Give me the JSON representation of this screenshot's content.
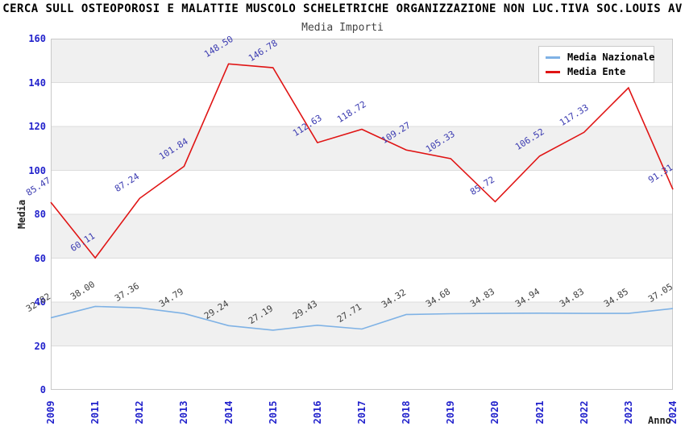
{
  "title": "CERCA SULL OSTEOPOROSI E MALATTIE MUSCOLO SCHELETRICHE ORGANIZZAZIONE NON LUC.TIVA SOC.LOUIS AV",
  "subtitle": "Media Importi",
  "y_axis": {
    "label": "Media",
    "ticks": [
      0,
      20,
      40,
      60,
      80,
      100,
      120,
      140,
      160
    ]
  },
  "x_axis": {
    "label": "Anno"
  },
  "legend": {
    "items": [
      {
        "label": "Media Nazionale",
        "color": "#7fb2e5"
      },
      {
        "label": "Media Ente",
        "color": "#e01414"
      }
    ]
  },
  "colors": {
    "tick_label": "#2222cc",
    "band": "#f0f0f0",
    "gridline": "#dcdcdc",
    "plot_border": "#c9c9c9",
    "nazionale_label": "#3f3f3f",
    "ente_label": "#3939b0"
  },
  "chart_data": {
    "type": "line",
    "title": "Media Importi",
    "xlabel": "Anno",
    "ylabel": "Media",
    "ylim": [
      0,
      160
    ],
    "grid": "horizontal-bands",
    "legend_position": "top-right",
    "x": [
      "2009",
      "2011",
      "2012",
      "2013",
      "2014",
      "2015",
      "2016",
      "2017",
      "2018",
      "2019",
      "2020",
      "2021",
      "2022",
      "2023",
      "2024"
    ],
    "series": [
      {
        "name": "Media Nazionale",
        "color": "#7fb2e5",
        "label_color": "#3f3f3f",
        "values": [
          32.82,
          38.0,
          37.36,
          34.79,
          29.24,
          27.19,
          29.43,
          27.71,
          34.32,
          34.68,
          34.83,
          34.94,
          34.83,
          34.85,
          37.05
        ],
        "labels": [
          "32.82",
          "38.00",
          "37.36",
          "34.79",
          "29.24",
          "27.19",
          "29.43",
          "27.71",
          "34.32",
          "34.68",
          "34.83",
          "34.94",
          "34.83",
          "34.85",
          "37.05"
        ]
      },
      {
        "name": "Media Ente",
        "color": "#e01414",
        "label_color": "#3939b0",
        "values": [
          85.47,
          60.11,
          87.24,
          101.84,
          148.5,
          146.78,
          112.63,
          118.72,
          109.27,
          105.33,
          85.72,
          106.52,
          117.33,
          137.6,
          91.31
        ],
        "labels": [
          "85.47",
          "60.11",
          "87.24",
          "101.84",
          "148.50",
          "146.78",
          "112.63",
          "118.72",
          "109.27",
          "105.33",
          "85.72",
          "106.52",
          "117.33",
          "",
          "91.31"
        ]
      }
    ]
  }
}
